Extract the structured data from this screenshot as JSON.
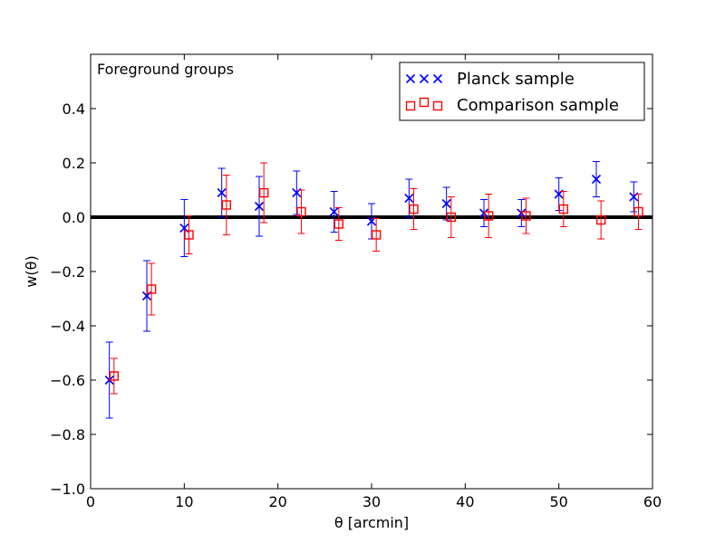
{
  "chart_data": {
    "type": "scatter",
    "title": "",
    "annotation": "Foreground groups",
    "xlabel": "θ [arcmin]",
    "ylabel": "w(θ)",
    "xlim": [
      0,
      60
    ],
    "ylim": [
      -1.0,
      0.6
    ],
    "xticks": [
      0,
      10,
      20,
      30,
      40,
      50,
      60
    ],
    "xtick_labels": [
      "0",
      "10",
      "20",
      "30",
      "40",
      "50",
      "60"
    ],
    "yticks": [
      -1.0,
      -0.8,
      -0.6,
      -0.4,
      -0.2,
      0.0,
      0.2,
      0.4
    ],
    "ytick_labels": [
      "−1.0",
      "−0.8",
      "−0.6",
      "−0.4",
      "−0.2",
      "0.0",
      "0.2",
      "0.4"
    ],
    "reference_line_y": 0.0,
    "legend_position": "top-right",
    "series": [
      {
        "name": "Planck sample",
        "marker": "x",
        "color": "#0000ff",
        "x": [
          2,
          6,
          10,
          14,
          18,
          22,
          26,
          30,
          34,
          38,
          42,
          46,
          50,
          54,
          58
        ],
        "y": [
          -0.6,
          -0.29,
          -0.04,
          0.09,
          0.04,
          0.09,
          0.02,
          -0.015,
          0.07,
          0.05,
          0.015,
          0.015,
          0.085,
          0.14,
          0.075
        ],
        "yerr": [
          0.14,
          0.13,
          0.105,
          0.09,
          0.11,
          0.08,
          0.075,
          0.065,
          0.07,
          0.06,
          0.05,
          0.05,
          0.06,
          0.065,
          0.055
        ]
      },
      {
        "name": "Comparison sample",
        "marker": "square",
        "color": "#ff0000",
        "x": [
          2.5,
          6.5,
          10.5,
          14.5,
          18.5,
          22.5,
          26.5,
          30.5,
          34.5,
          38.5,
          42.5,
          46.5,
          50.5,
          54.5,
          58.5
        ],
        "y": [
          -0.585,
          -0.265,
          -0.065,
          0.045,
          0.09,
          0.02,
          -0.025,
          -0.065,
          0.03,
          0.0,
          0.005,
          0.005,
          0.03,
          -0.01,
          0.02
        ],
        "yerr": [
          0.065,
          0.095,
          0.07,
          0.11,
          0.11,
          0.08,
          0.06,
          0.06,
          0.075,
          0.075,
          0.08,
          0.065,
          0.065,
          0.07,
          0.065
        ]
      }
    ]
  }
}
